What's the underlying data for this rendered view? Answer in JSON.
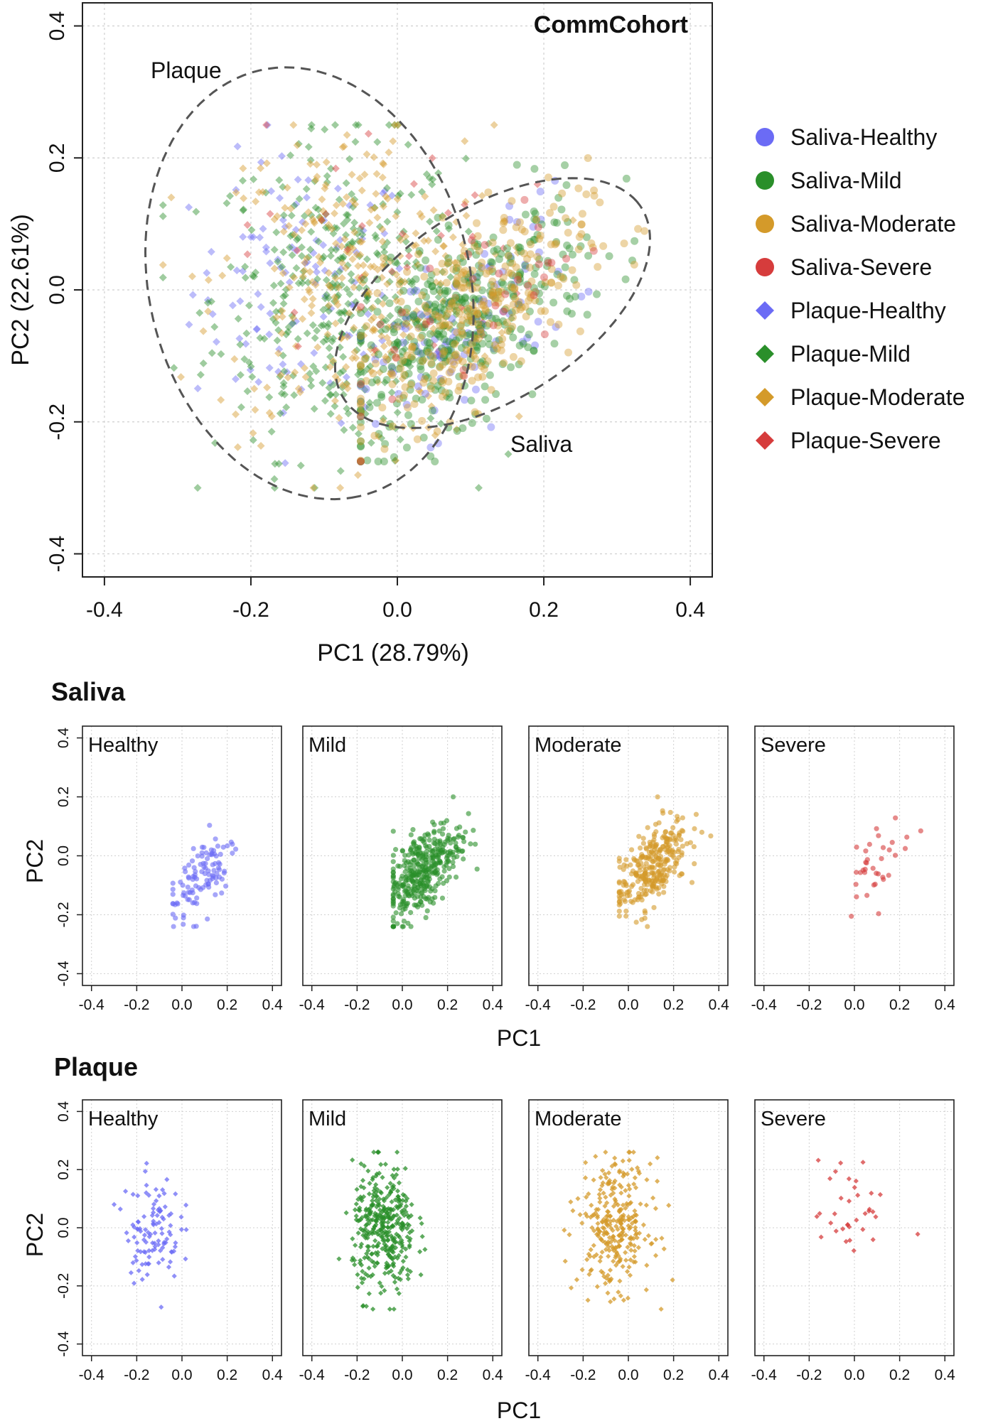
{
  "chart_data": [
    {
      "type": "scatter",
      "title": "CommCohort",
      "xlabel": "PC1 (28.79%)",
      "ylabel": "PC2 (22.61%)",
      "xlim": [
        -0.43,
        0.43
      ],
      "ylim": [
        -0.435,
        0.435
      ],
      "xticks": [
        -0.4,
        -0.2,
        0.0,
        0.2,
        0.4
      ],
      "yticks": [
        -0.4,
        -0.2,
        0.0,
        0.2,
        0.4
      ],
      "tick_labels": [
        "-0.4",
        "-0.2",
        "0.0",
        "0.2",
        "0.4"
      ],
      "grid": true,
      "legend_position": "right",
      "legend": [
        {
          "label": "Saliva-Healthy",
          "color": "#6b6bf5",
          "marker": "circle"
        },
        {
          "label": "Saliva-Mild",
          "color": "#2a8f2a",
          "marker": "circle"
        },
        {
          "label": "Saliva-Moderate",
          "color": "#d49a2a",
          "marker": "circle"
        },
        {
          "label": "Saliva-Severe",
          "color": "#d63c3c",
          "marker": "circle"
        },
        {
          "label": "Plaque-Healthy",
          "color": "#6b6bf5",
          "marker": "diamond"
        },
        {
          "label": "Plaque-Mild",
          "color": "#2a8f2a",
          "marker": "diamond"
        },
        {
          "label": "Plaque-Moderate",
          "color": "#d49a2a",
          "marker": "diamond"
        },
        {
          "label": "Plaque-Severe",
          "color": "#d63c3c",
          "marker": "diamond"
        }
      ],
      "ellipses": [
        {
          "label": "Plaque",
          "center": [
            -0.12,
            0.01
          ],
          "semi_axis_major": 0.33,
          "semi_axis_minor": 0.22,
          "angle_deg": -80
        },
        {
          "label": "Saliva",
          "center": [
            0.13,
            -0.02
          ],
          "semi_axis_major": 0.25,
          "semi_axis_minor": 0.14,
          "angle_deg": 38
        }
      ],
      "approx_point_counts": {
        "saliva_healthy": 110,
        "saliva_mild": 380,
        "saliva_moderate": 300,
        "saliva_severe": 35,
        "plaque_healthy": 110,
        "plaque_mild": 380,
        "plaque_moderate": 300,
        "plaque_severe": 35
      }
    },
    {
      "type": "scatter",
      "group": "Saliva",
      "xlabel": "PC1",
      "ylabel": "PC2",
      "xlim": [
        -0.44,
        0.44
      ],
      "ylim": [
        -0.44,
        0.44
      ],
      "tick_labels": [
        "-0.4",
        "-0.2",
        "0.0",
        "0.2",
        "0.4"
      ],
      "panels": [
        {
          "title": "Healthy",
          "color": "#6b6bf5",
          "marker": "circle",
          "n": 110,
          "center": [
            0.09,
            -0.06
          ],
          "spread": [
            0.075,
            0.085
          ]
        },
        {
          "title": "Mild",
          "color": "#2a8f2a",
          "marker": "circle",
          "n": 380,
          "center": [
            0.09,
            -0.05
          ],
          "spread": [
            0.085,
            0.085
          ]
        },
        {
          "title": "Moderate",
          "color": "#d49a2a",
          "marker": "circle",
          "n": 300,
          "center": [
            0.1,
            -0.04
          ],
          "spread": [
            0.08,
            0.085
          ]
        },
        {
          "title": "Severe",
          "color": "#d63c3c",
          "marker": "circle",
          "n": 35,
          "center": [
            0.1,
            -0.02
          ],
          "spread": [
            0.075,
            0.075
          ]
        }
      ]
    },
    {
      "type": "scatter",
      "group": "Plaque",
      "xlabel": "PC1",
      "ylabel": "PC2",
      "xlim": [
        -0.44,
        0.44
      ],
      "ylim": [
        -0.44,
        0.44
      ],
      "tick_labels": [
        "-0.4",
        "-0.2",
        "0.0",
        "0.2",
        "0.4"
      ],
      "panels": [
        {
          "title": "Healthy",
          "color": "#6b6bf5",
          "marker": "diamond",
          "n": 110,
          "center": [
            -0.13,
            0.0
          ],
          "spread": [
            0.06,
            0.09
          ]
        },
        {
          "title": "Mild",
          "color": "#2a8f2a",
          "marker": "diamond",
          "n": 380,
          "center": [
            -0.08,
            -0.01
          ],
          "spread": [
            0.07,
            0.11
          ]
        },
        {
          "title": "Moderate",
          "color": "#d49a2a",
          "marker": "diamond",
          "n": 300,
          "center": [
            -0.06,
            0.01
          ],
          "spread": [
            0.08,
            0.11
          ]
        },
        {
          "title": "Severe",
          "color": "#d63c3c",
          "marker": "diamond",
          "n": 35,
          "center": [
            -0.02,
            0.06
          ],
          "spread": [
            0.08,
            0.09
          ]
        }
      ]
    }
  ]
}
